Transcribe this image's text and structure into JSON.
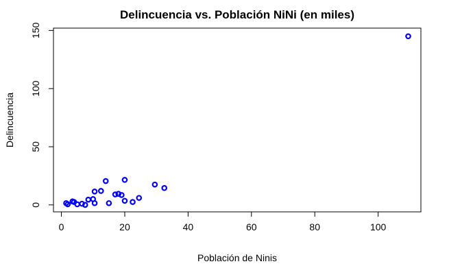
{
  "chart_data": {
    "type": "scatter",
    "title": "Delincuencia vs. Población NiNi (en miles)",
    "xlabel": "Población de Ninis",
    "ylabel": "Delincuencia",
    "xlim": [
      -2.5,
      113.5
    ],
    "ylim": [
      -6,
      152
    ],
    "xticks": [
      0,
      20,
      40,
      60,
      80,
      100
    ],
    "yticks": [
      0,
      50,
      100,
      150
    ],
    "grid": false,
    "point_color": "#0000ff",
    "x": [
      1.5,
      2.0,
      3.5,
      4.0,
      5.0,
      6.5,
      7.5,
      8.5,
      10.0,
      10.5,
      10.5,
      12.5,
      14.0,
      15.0,
      17.0,
      18.0,
      19.0,
      20.0,
      20.0,
      22.5,
      24.5,
      29.5,
      32.5,
      109.5
    ],
    "y": [
      1.5,
      0.5,
      3.0,
      2.5,
      0.5,
      1.0,
      0.0,
      4.5,
      5.0,
      11.5,
      1.5,
      12.0,
      20.5,
      1.5,
      9.0,
      9.5,
      8.5,
      21.5,
      3.5,
      2.5,
      6.0,
      17.5,
      14.5,
      145.0
    ]
  }
}
